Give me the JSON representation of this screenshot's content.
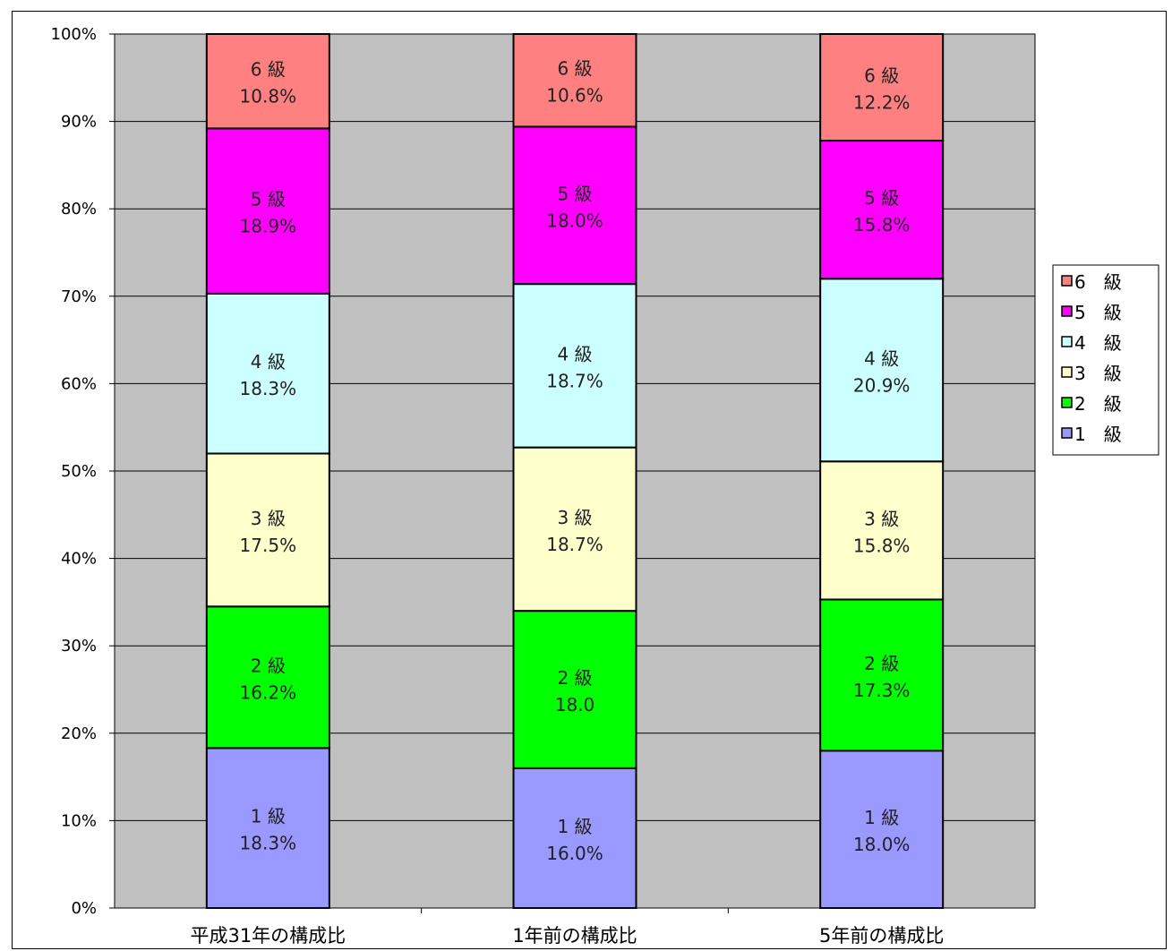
{
  "chart_data": {
    "type": "bar",
    "stacked": true,
    "title": "",
    "xlabel": "",
    "ylabel": "",
    "ylim": [
      0,
      100
    ],
    "y_ticks": [
      "0%",
      "10%",
      "20%",
      "30%",
      "40%",
      "50%",
      "60%",
      "70%",
      "80%",
      "90%",
      "100%"
    ],
    "grid": true,
    "legend_position": "right",
    "categories": [
      "平成31年の構成比",
      "1年前の構成比",
      "5年前の構成比"
    ],
    "series": [
      {
        "name": "1　級",
        "color": "#9999ff",
        "values": [
          18.3,
          16.0,
          18.0
        ],
        "labels": [
          [
            "1 級",
            "18.3%"
          ],
          [
            "1 級",
            "16.0%"
          ],
          [
            "1 級",
            "18.0%"
          ]
        ]
      },
      {
        "name": "2　級",
        "color": "#00ff00",
        "values": [
          16.2,
          18.0,
          17.3
        ],
        "labels": [
          [
            "2 級",
            "16.2%"
          ],
          [
            "2 級",
            "18.0"
          ],
          [
            "2 級",
            "17.3%"
          ]
        ]
      },
      {
        "name": "3　級",
        "color": "#ffffcc",
        "values": [
          17.5,
          18.7,
          15.8
        ],
        "labels": [
          [
            "3 級",
            "17.5%"
          ],
          [
            "3 級",
            "18.7%"
          ],
          [
            "3 級",
            "15.8%"
          ]
        ]
      },
      {
        "name": "4　級",
        "color": "#ccffff",
        "values": [
          18.3,
          18.7,
          20.9
        ],
        "labels": [
          [
            "4 級",
            "18.3%"
          ],
          [
            "4 級",
            "18.7%"
          ],
          [
            "4 級",
            "20.9%"
          ]
        ]
      },
      {
        "name": "5　級",
        "color": "#ff00ff",
        "values": [
          18.9,
          18.0,
          15.8
        ],
        "labels": [
          [
            "5 級",
            "18.9%"
          ],
          [
            "5 級",
            "18.0%"
          ],
          [
            "5 級",
            "15.8%"
          ]
        ]
      },
      {
        "name": "6　級",
        "color": "#ff8080",
        "values": [
          10.8,
          10.6,
          12.2
        ],
        "labels": [
          [
            "6 級",
            "10.8%"
          ],
          [
            "6 級",
            "10.6%"
          ],
          [
            "6 級",
            "12.2%"
          ]
        ]
      }
    ],
    "plot_background": "#c0c0c0"
  }
}
